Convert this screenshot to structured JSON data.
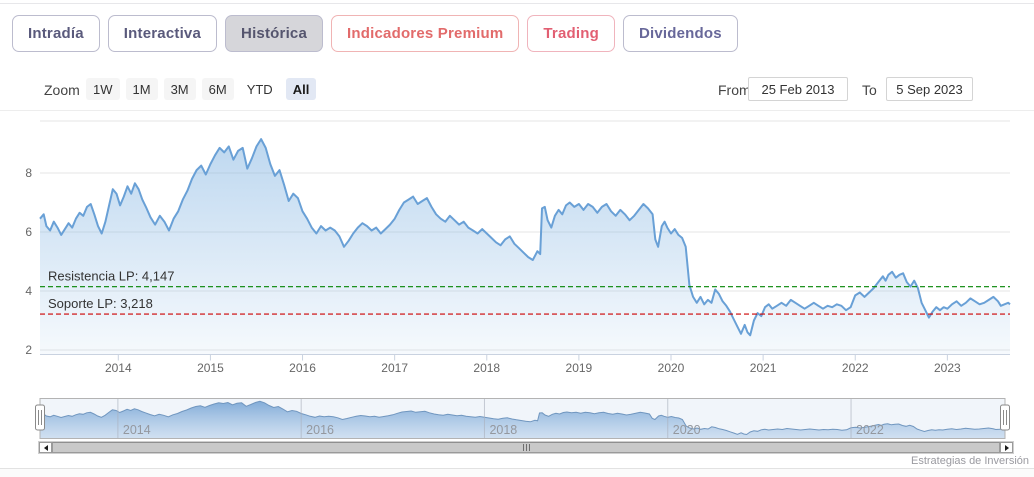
{
  "tabs": [
    {
      "id": "intradia",
      "label": "Intradía",
      "text_color": "#5a5a7c",
      "border_color": "#bcbcce",
      "bg": "#ffffff",
      "active": false
    },
    {
      "id": "interactiva",
      "label": "Interactiva",
      "text_color": "#5a5a7c",
      "border_color": "#bcbcce",
      "bg": "#ffffff",
      "active": false
    },
    {
      "id": "historica",
      "label": "Histórica",
      "text_color": "#55556e",
      "border_color": "#bcbcce",
      "bg": "#d6d6da",
      "active": true
    },
    {
      "id": "indicadores-premium",
      "label": "Indicadores Premium",
      "text_color": "#e26b6b",
      "border_color": "#f0b4b4",
      "bg": "#ffffff",
      "active": false
    },
    {
      "id": "trading",
      "label": "Trading",
      "text_color": "#e25f72",
      "border_color": "#f0b4bd",
      "bg": "#ffffff",
      "active": false
    },
    {
      "id": "dividendos",
      "label": "Dividendos",
      "text_color": "#68689a",
      "border_color": "#bcbcce",
      "bg": "#ffffff",
      "active": false
    }
  ],
  "zoom_toolbar": {
    "label": "Zoom",
    "buttons": [
      {
        "label": "1W",
        "style": "filled"
      },
      {
        "label": "1M",
        "style": "filled"
      },
      {
        "label": "3M",
        "style": "filled"
      },
      {
        "label": "6M",
        "style": "filled"
      },
      {
        "label": "YTD",
        "style": "plain"
      },
      {
        "label": "All",
        "style": "selected"
      }
    ],
    "from_label": "From",
    "from_value": "25 Feb 2013",
    "to_label": "To",
    "to_value": "5 Sep 2023"
  },
  "chart_data": {
    "type": "area",
    "title": "",
    "x_range": [
      2013.15,
      2023.68
    ],
    "ylim": [
      1.8,
      9.6
    ],
    "y_ticks": [
      2,
      4,
      6,
      8
    ],
    "x_ticks": [
      2014,
      2015,
      2016,
      2017,
      2018,
      2019,
      2020,
      2021,
      2022,
      2023
    ],
    "navigator_ticks": [
      2014,
      2016,
      2018,
      2020,
      2022
    ],
    "grid": true,
    "legend": false,
    "plot_lines": [
      {
        "id": "resistencia",
        "label": "Resistencia LP: 4,147",
        "value": 4.147,
        "color": "#028402"
      },
      {
        "id": "soporte",
        "label": "Soporte LP: 3,218",
        "value": 3.218,
        "color": "#cc0000"
      }
    ],
    "series": [
      {
        "name": "price",
        "color": "#69a0d6",
        "points": [
          [
            2013.15,
            6.45
          ],
          [
            2013.19,
            6.6
          ],
          [
            2013.22,
            6.2
          ],
          [
            2013.26,
            6.05
          ],
          [
            2013.3,
            6.35
          ],
          [
            2013.34,
            6.15
          ],
          [
            2013.38,
            5.9
          ],
          [
            2013.42,
            6.1
          ],
          [
            2013.46,
            6.3
          ],
          [
            2013.5,
            6.15
          ],
          [
            2013.54,
            6.45
          ],
          [
            2013.58,
            6.65
          ],
          [
            2013.62,
            6.55
          ],
          [
            2013.66,
            6.85
          ],
          [
            2013.7,
            6.95
          ],
          [
            2013.74,
            6.6
          ],
          [
            2013.78,
            6.2
          ],
          [
            2013.82,
            5.95
          ],
          [
            2013.86,
            6.35
          ],
          [
            2013.9,
            6.9
          ],
          [
            2013.94,
            7.45
          ],
          [
            2013.98,
            7.3
          ],
          [
            2014.02,
            6.9
          ],
          [
            2014.06,
            7.2
          ],
          [
            2014.1,
            7.55
          ],
          [
            2014.14,
            7.3
          ],
          [
            2014.18,
            7.65
          ],
          [
            2014.22,
            7.45
          ],
          [
            2014.26,
            7.1
          ],
          [
            2014.3,
            6.85
          ],
          [
            2014.35,
            6.5
          ],
          [
            2014.4,
            6.25
          ],
          [
            2014.45,
            6.55
          ],
          [
            2014.5,
            6.35
          ],
          [
            2014.55,
            6.05
          ],
          [
            2014.6,
            6.45
          ],
          [
            2014.65,
            6.7
          ],
          [
            2014.7,
            7.1
          ],
          [
            2014.75,
            7.4
          ],
          [
            2014.8,
            7.8
          ],
          [
            2014.85,
            8.1
          ],
          [
            2014.9,
            8.25
          ],
          [
            2014.95,
            7.95
          ],
          [
            2015.0,
            8.3
          ],
          [
            2015.05,
            8.6
          ],
          [
            2015.1,
            8.85
          ],
          [
            2015.15,
            8.7
          ],
          [
            2015.2,
            8.9
          ],
          [
            2015.25,
            8.45
          ],
          [
            2015.3,
            8.75
          ],
          [
            2015.35,
            8.85
          ],
          [
            2015.4,
            8.15
          ],
          [
            2015.45,
            8.5
          ],
          [
            2015.5,
            8.9
          ],
          [
            2015.55,
            9.15
          ],
          [
            2015.6,
            8.85
          ],
          [
            2015.65,
            8.3
          ],
          [
            2015.7,
            7.9
          ],
          [
            2015.75,
            8.1
          ],
          [
            2015.8,
            7.6
          ],
          [
            2015.85,
            7.05
          ],
          [
            2015.9,
            7.3
          ],
          [
            2015.95,
            7.15
          ],
          [
            2016.0,
            6.7
          ],
          [
            2016.05,
            6.45
          ],
          [
            2016.1,
            6.15
          ],
          [
            2016.15,
            5.95
          ],
          [
            2016.2,
            6.2
          ],
          [
            2016.25,
            6.05
          ],
          [
            2016.3,
            6.15
          ],
          [
            2016.35,
            6.05
          ],
          [
            2016.4,
            5.85
          ],
          [
            2016.45,
            5.5
          ],
          [
            2016.5,
            5.7
          ],
          [
            2016.55,
            5.95
          ],
          [
            2016.6,
            6.15
          ],
          [
            2016.65,
            6.3
          ],
          [
            2016.7,
            6.2
          ],
          [
            2016.75,
            6.05
          ],
          [
            2016.8,
            6.15
          ],
          [
            2016.85,
            5.95
          ],
          [
            2016.9,
            6.1
          ],
          [
            2016.95,
            6.25
          ],
          [
            2017.0,
            6.45
          ],
          [
            2017.05,
            6.75
          ],
          [
            2017.1,
            7.0
          ],
          [
            2017.15,
            7.1
          ],
          [
            2017.2,
            7.2
          ],
          [
            2017.25,
            6.95
          ],
          [
            2017.3,
            7.05
          ],
          [
            2017.35,
            7.15
          ],
          [
            2017.4,
            6.85
          ],
          [
            2017.45,
            6.6
          ],
          [
            2017.5,
            6.45
          ],
          [
            2017.55,
            6.35
          ],
          [
            2017.6,
            6.55
          ],
          [
            2017.65,
            6.4
          ],
          [
            2017.7,
            6.25
          ],
          [
            2017.75,
            6.35
          ],
          [
            2017.8,
            6.15
          ],
          [
            2017.85,
            6.05
          ],
          [
            2017.9,
            5.95
          ],
          [
            2017.95,
            6.1
          ],
          [
            2018.0,
            5.95
          ],
          [
            2018.05,
            5.8
          ],
          [
            2018.1,
            5.65
          ],
          [
            2018.15,
            5.55
          ],
          [
            2018.2,
            5.75
          ],
          [
            2018.25,
            5.85
          ],
          [
            2018.3,
            5.6
          ],
          [
            2018.35,
            5.45
          ],
          [
            2018.4,
            5.3
          ],
          [
            2018.45,
            5.15
          ],
          [
            2018.5,
            5.05
          ],
          [
            2018.55,
            5.35
          ],
          [
            2018.58,
            5.25
          ],
          [
            2018.6,
            6.8
          ],
          [
            2018.63,
            6.85
          ],
          [
            2018.66,
            6.4
          ],
          [
            2018.7,
            6.15
          ],
          [
            2018.74,
            6.55
          ],
          [
            2018.78,
            6.75
          ],
          [
            2018.82,
            6.6
          ],
          [
            2018.86,
            6.9
          ],
          [
            2018.9,
            7.0
          ],
          [
            2018.95,
            6.85
          ],
          [
            2019.0,
            6.95
          ],
          [
            2019.05,
            6.75
          ],
          [
            2019.1,
            6.95
          ],
          [
            2019.15,
            6.85
          ],
          [
            2019.2,
            6.65
          ],
          [
            2019.25,
            6.85
          ],
          [
            2019.3,
            6.95
          ],
          [
            2019.35,
            6.7
          ],
          [
            2019.4,
            6.55
          ],
          [
            2019.45,
            6.75
          ],
          [
            2019.5,
            6.6
          ],
          [
            2019.55,
            6.4
          ],
          [
            2019.6,
            6.55
          ],
          [
            2019.65,
            6.75
          ],
          [
            2019.7,
            6.95
          ],
          [
            2019.75,
            6.8
          ],
          [
            2019.8,
            6.6
          ],
          [
            2019.83,
            5.75
          ],
          [
            2019.86,
            5.5
          ],
          [
            2019.9,
            6.2
          ],
          [
            2019.93,
            6.35
          ],
          [
            2019.96,
            6.15
          ],
          [
            2020.0,
            5.95
          ],
          [
            2020.04,
            6.1
          ],
          [
            2020.08,
            5.9
          ],
          [
            2020.12,
            5.8
          ],
          [
            2020.16,
            5.5
          ],
          [
            2020.2,
            4.2
          ],
          [
            2020.24,
            3.8
          ],
          [
            2020.28,
            3.6
          ],
          [
            2020.32,
            3.8
          ],
          [
            2020.36,
            3.55
          ],
          [
            2020.4,
            3.7
          ],
          [
            2020.44,
            3.6
          ],
          [
            2020.48,
            4.05
          ],
          [
            2020.52,
            3.9
          ],
          [
            2020.56,
            3.65
          ],
          [
            2020.6,
            3.5
          ],
          [
            2020.64,
            3.3
          ],
          [
            2020.68,
            3.05
          ],
          [
            2020.72,
            2.8
          ],
          [
            2020.76,
            2.55
          ],
          [
            2020.8,
            2.85
          ],
          [
            2020.83,
            2.6
          ],
          [
            2020.86,
            2.5
          ],
          [
            2020.9,
            3.0
          ],
          [
            2020.94,
            3.25
          ],
          [
            2020.98,
            3.15
          ],
          [
            2021.02,
            3.45
          ],
          [
            2021.06,
            3.55
          ],
          [
            2021.1,
            3.4
          ],
          [
            2021.15,
            3.5
          ],
          [
            2021.2,
            3.6
          ],
          [
            2021.25,
            3.5
          ],
          [
            2021.3,
            3.7
          ],
          [
            2021.35,
            3.6
          ],
          [
            2021.4,
            3.5
          ],
          [
            2021.45,
            3.4
          ],
          [
            2021.5,
            3.5
          ],
          [
            2021.55,
            3.6
          ],
          [
            2021.6,
            3.5
          ],
          [
            2021.65,
            3.4
          ],
          [
            2021.7,
            3.5
          ],
          [
            2021.75,
            3.45
          ],
          [
            2021.8,
            3.55
          ],
          [
            2021.85,
            3.5
          ],
          [
            2021.9,
            3.35
          ],
          [
            2021.95,
            3.45
          ],
          [
            2022.0,
            3.85
          ],
          [
            2022.05,
            3.95
          ],
          [
            2022.1,
            3.8
          ],
          [
            2022.15,
            3.95
          ],
          [
            2022.2,
            4.1
          ],
          [
            2022.25,
            4.3
          ],
          [
            2022.3,
            4.5
          ],
          [
            2022.33,
            4.35
          ],
          [
            2022.36,
            4.55
          ],
          [
            2022.4,
            4.65
          ],
          [
            2022.44,
            4.45
          ],
          [
            2022.48,
            4.55
          ],
          [
            2022.52,
            4.6
          ],
          [
            2022.56,
            4.3
          ],
          [
            2022.6,
            4.15
          ],
          [
            2022.64,
            4.35
          ],
          [
            2022.68,
            4.1
          ],
          [
            2022.72,
            3.6
          ],
          [
            2022.76,
            3.35
          ],
          [
            2022.8,
            3.1
          ],
          [
            2022.84,
            3.3
          ],
          [
            2022.88,
            3.45
          ],
          [
            2022.92,
            3.35
          ],
          [
            2022.96,
            3.45
          ],
          [
            2023.0,
            3.4
          ],
          [
            2023.05,
            3.55
          ],
          [
            2023.1,
            3.65
          ],
          [
            2023.15,
            3.5
          ],
          [
            2023.2,
            3.6
          ],
          [
            2023.25,
            3.75
          ],
          [
            2023.3,
            3.65
          ],
          [
            2023.35,
            3.55
          ],
          [
            2023.4,
            3.6
          ],
          [
            2023.45,
            3.7
          ],
          [
            2023.5,
            3.8
          ],
          [
            2023.55,
            3.65
          ],
          [
            2023.58,
            3.5
          ],
          [
            2023.62,
            3.55
          ],
          [
            2023.66,
            3.6
          ],
          [
            2023.68,
            3.55
          ]
        ]
      }
    ]
  },
  "credits": "Estrategias de Inversión"
}
